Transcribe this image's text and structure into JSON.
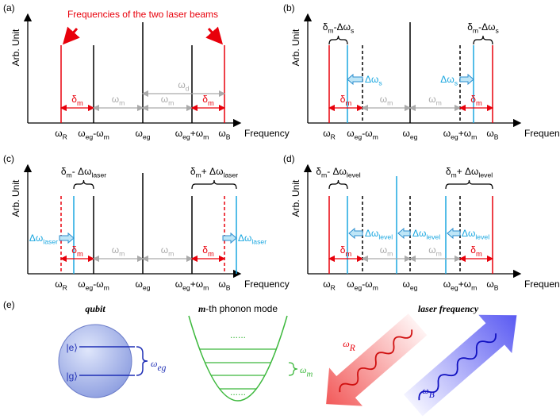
{
  "panels": [
    {
      "label": "(a)",
      "y_axis": "Arb. Unit",
      "x_axis": "Frequency",
      "ticks": [
        [
          "ω",
          "R"
        ],
        [
          "ω",
          "eg",
          "-ω",
          "m"
        ],
        [
          "ω",
          "eg"
        ],
        [
          "ω",
          "eg",
          "+ω",
          "m"
        ],
        [
          "ω",
          "B"
        ]
      ],
      "annotations": [
        [
          "Frequencies of the two laser beams"
        ],
        [
          "δ",
          "m"
        ],
        [
          "ω",
          "m"
        ],
        [
          "ω",
          "m"
        ],
        [
          "δ",
          "m"
        ],
        [
          "ω",
          "d"
        ]
      ]
    },
    {
      "label": "(b)",
      "y_axis": "Arb. Unit",
      "x_axis": "Frequency",
      "ticks": [
        [
          "ω",
          "R"
        ],
        [
          "ω",
          "eg",
          "-ω",
          "m"
        ],
        [
          "ω",
          "eg"
        ],
        [
          "ω",
          "eg",
          "+ω",
          "m"
        ],
        [
          "ω",
          "B"
        ]
      ],
      "annotations": [
        [
          "δ",
          "m",
          "-Δω",
          "s"
        ],
        [
          "δ",
          "m",
          "-Δω",
          "s"
        ],
        [
          "Δω",
          "s"
        ],
        [
          "Δω",
          "s"
        ],
        [
          "δ",
          "m"
        ],
        [
          "ω",
          "m"
        ],
        [
          "ω",
          "m"
        ],
        [
          "δ",
          "m"
        ]
      ]
    },
    {
      "label": "(c)",
      "y_axis": "Arb. Unit",
      "x_axis": "Frequency",
      "ticks": [
        [
          "ω",
          "R"
        ],
        [
          "ω",
          "eg",
          "-ω",
          "m"
        ],
        [
          "ω",
          "eg"
        ],
        [
          "ω",
          "eg",
          "+ω",
          "m"
        ],
        [
          "ω",
          "B"
        ]
      ],
      "annotations": [
        [
          "δ",
          "m",
          "- Δω",
          "laser"
        ],
        [
          "δ",
          "m",
          "+ Δω",
          "laser"
        ],
        [
          "Δω",
          "laser"
        ],
        [
          "Δω",
          "laser"
        ],
        [
          "δ",
          "m"
        ],
        [
          "ω",
          "m"
        ],
        [
          "ω",
          "m"
        ],
        [
          "δ",
          "m"
        ]
      ]
    },
    {
      "label": "(d)",
      "y_axis": "Arb. Unit",
      "x_axis": "Frequency",
      "ticks": [
        [
          "ω",
          "R"
        ],
        [
          "ω",
          "eg",
          "-ω",
          "m"
        ],
        [
          "ω",
          "eg"
        ],
        [
          "ω",
          "eg",
          "+ω",
          "m"
        ],
        [
          "ω",
          "B"
        ]
      ],
      "annotations": [
        [
          "δ",
          "m",
          "- Δω",
          "level"
        ],
        [
          "δ",
          "m",
          "+ Δω",
          "level"
        ],
        [
          "Δω",
          "level"
        ],
        [
          "Δω",
          "level"
        ],
        [
          "Δω",
          "level"
        ],
        [
          "δ",
          "m"
        ],
        [
          "ω",
          "m"
        ],
        [
          "ω",
          "m"
        ],
        [
          "δ",
          "m"
        ]
      ]
    }
  ],
  "panel_e": {
    "label": "(e)",
    "titles": [
      [
        "qubit"
      ],
      [
        "m",
        "-th phonon mode"
      ],
      [
        "laser frequency"
      ]
    ],
    "qubit_states": [
      "|e⟩",
      "|g⟩"
    ],
    "qubit_gap": [
      "ω",
      "eg"
    ],
    "phonon_dots": [
      "......",
      "......"
    ],
    "phonon_gap": [
      "ω",
      "m"
    ],
    "laser_labels": [
      [
        "ω",
        "R"
      ],
      [
        "ω",
        "B"
      ]
    ]
  }
}
